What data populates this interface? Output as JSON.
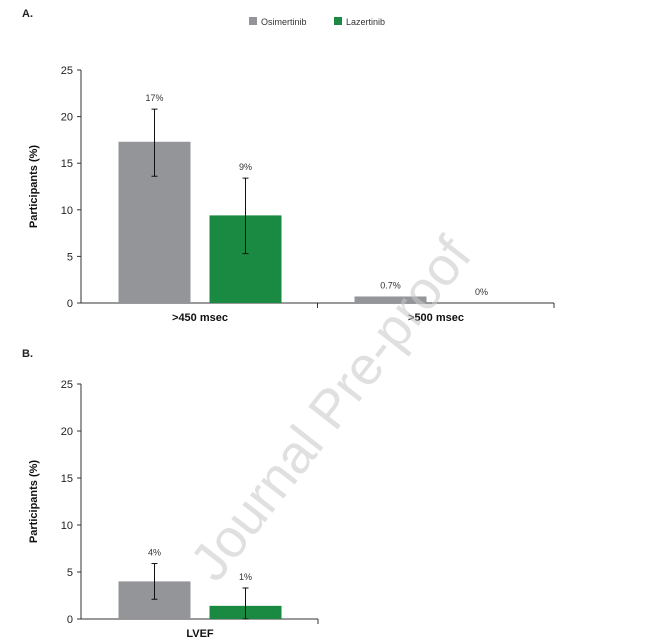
{
  "watermark": "Journal Pre-proof",
  "legend": [
    {
      "label": "Osimertinib",
      "color": "#939598"
    },
    {
      "label": "Lazertinib",
      "color": "#1a8a43"
    }
  ],
  "chart_data": [
    {
      "panel": "A.",
      "type": "bar",
      "ylabel": "Participants (%)",
      "ylim": [
        0,
        25
      ],
      "yticks": [
        0,
        5,
        10,
        15,
        20,
        25
      ],
      "categories": [
        ">450 msec",
        ">500 msec"
      ],
      "series": [
        {
          "name": "Osimertinib",
          "color": "#939598",
          "values": [
            17.3,
            0.7
          ],
          "labels": [
            "17%",
            "0.7%"
          ],
          "error_low": [
            13.6,
            null
          ],
          "error_high": [
            20.8,
            null
          ]
        },
        {
          "name": "Lazertinib",
          "color": "#1a8a43",
          "values": [
            9.4,
            0
          ],
          "labels": [
            "9%",
            "0%"
          ],
          "error_low": [
            5.3,
            null
          ],
          "error_high": [
            13.4,
            null
          ]
        }
      ]
    },
    {
      "panel": "B.",
      "type": "bar",
      "ylabel": "Participants (%)",
      "ylim": [
        0,
        25
      ],
      "yticks": [
        0,
        5,
        10,
        15,
        20,
        25
      ],
      "categories": [
        "LVEF"
      ],
      "series": [
        {
          "name": "Osimertinib",
          "color": "#939598",
          "values": [
            4.0
          ],
          "labels": [
            "4%"
          ],
          "error_low": [
            2.1
          ],
          "error_high": [
            5.9
          ]
        },
        {
          "name": "Lazertinib",
          "color": "#1a8a43",
          "values": [
            1.4
          ],
          "labels": [
            "1%"
          ],
          "error_low": [
            0
          ],
          "error_high": [
            3.3
          ]
        }
      ]
    }
  ]
}
